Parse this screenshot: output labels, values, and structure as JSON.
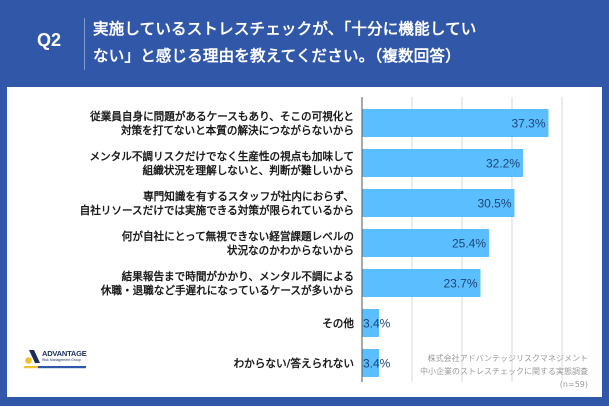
{
  "header": {
    "question_number": "Q2",
    "title_line1": "実施しているストレスチェックが、「十分に機能してい",
    "title_line2": "ない」と感じる理由を教えてください。（複数回答）"
  },
  "logo": {
    "name": "ADVANTAGE",
    "subtitle": "Risk Management Group",
    "colors": {
      "navy": "#1d2d5c",
      "yellow": "#f2c12e",
      "blue": "#2f58a8"
    }
  },
  "source": {
    "line1": "株式会社アドバンテッジリスクマネジメント",
    "line2": "中小企業のストレスチェックに関する実態調査",
    "line3": "(n=59)"
  },
  "colors": {
    "frame": "#3157a8",
    "bar": "#5bbfff",
    "value_text": "#1d4476",
    "grid": "#d9d9d9",
    "axis": "#555555"
  },
  "chart_data": {
    "type": "bar",
    "orientation": "horizontal",
    "title": "実施しているストレスチェックが、「十分に機能していない」と感じる理由を教えてください。（複数回答）",
    "xlabel": "",
    "ylabel": "",
    "xlim": [
      0,
      40
    ],
    "grid": true,
    "grid_ticks": [
      0,
      10,
      20,
      30,
      40
    ],
    "unit": "%",
    "categories": [
      [
        "従業員自身に問題があるケースもあり、そこの可視化と",
        "対策を打てないと本質の解決につながらないから"
      ],
      [
        "メンタル不調リスクだけでなく生産性の視点も加味して",
        "組織状況を理解しないと、判断が難しいから"
      ],
      [
        "専門知識を有するスタッフが社内におらず、",
        "自社リソースだけでは実施できる対策が限られているから"
      ],
      [
        "何が自社にとって無視できない経営課題レベルの",
        "状況なのかわからないから"
      ],
      [
        "結果報告まで時間がかかり、メンタル不調による",
        "休職・退職など手遅れになっているケースが多いから"
      ],
      [
        "その他"
      ],
      [
        "わからない/答えられない"
      ]
    ],
    "values": [
      37.3,
      32.2,
      30.5,
      25.4,
      23.7,
      3.4,
      3.4
    ],
    "value_labels": [
      "37.3%",
      "32.2%",
      "30.5%",
      "25.4%",
      "23.7%",
      "3.4%",
      "3.4%"
    ],
    "n": 59
  }
}
